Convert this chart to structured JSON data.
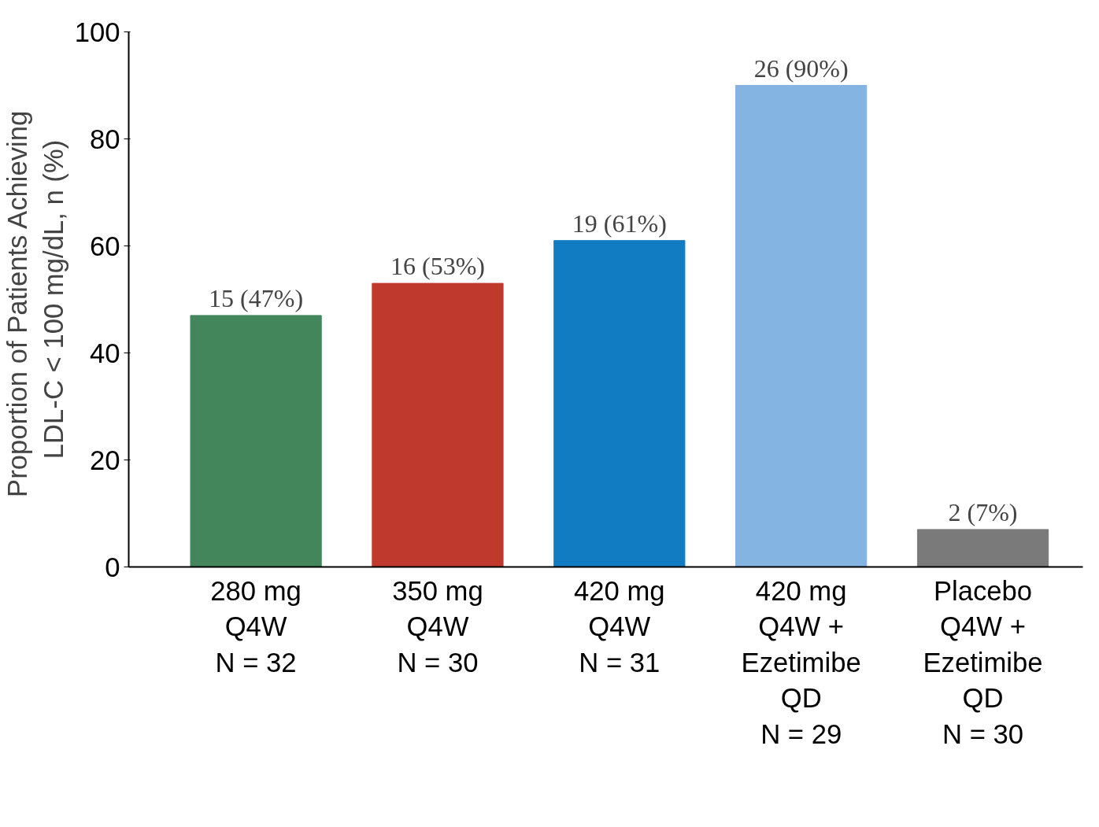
{
  "chart_data": {
    "type": "bar",
    "ylabel": "Proportion  of Patients Achieving\nLDL-C < 100 mg/dL, n (%)",
    "categories": [
      "280 mg\nQ4W\nN = 32",
      "350 mg\nQ4W\nN = 30",
      "420 mg\nQ4W\nN = 31",
      "420 mg\nQ4W +\nEzetimibe\nQD\nN = 29",
      "Placebo\nQ4W +\nEzetimibe\nQD\nN = 30"
    ],
    "values": [
      47,
      53,
      61,
      90,
      7
    ],
    "colors": [
      "#43865c",
      "#c0392d",
      "#117cc1",
      "#83b4e2",
      "#7a7a7a"
    ],
    "value_labels": [
      "15 (47%)",
      "16 (53%)",
      "19 (61%)",
      "26 (90%)",
      "2 (7%)"
    ],
    "ylim": [
      0,
      100
    ],
    "yticks": [
      0,
      20,
      40,
      60,
      80,
      100
    ],
    "grid": false
  }
}
